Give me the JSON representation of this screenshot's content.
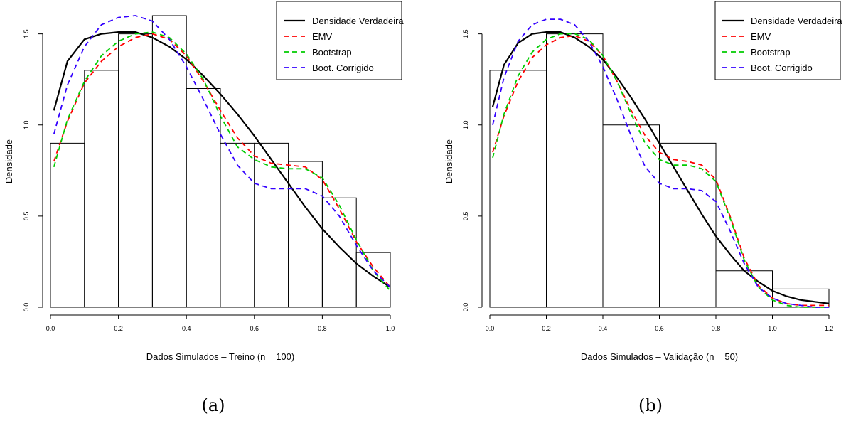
{
  "chart_data": [
    {
      "type": "histogram",
      "caption": "(a)",
      "xlabel": "Dados Simulados – Treino (n = 100)",
      "ylabel": "Densidade",
      "xlim": [
        0,
        1.0
      ],
      "ylim": [
        0,
        1.6
      ],
      "x_ticks": [
        0.0,
        0.2,
        0.4,
        0.6,
        0.8,
        1.0
      ],
      "x_tick_labels": [
        "0.0",
        "0.2",
        "0.4",
        "0.6",
        "0.8",
        "1.0"
      ],
      "y_ticks": [
        0.0,
        0.5,
        1.0,
        1.5
      ],
      "y_tick_labels": [
        "0.0",
        "0.5",
        "1.0",
        "1.5"
      ],
      "legend_position": "top-right",
      "bins": [
        {
          "x0": 0.0,
          "x1": 0.1,
          "density": 0.9
        },
        {
          "x0": 0.1,
          "x1": 0.2,
          "density": 1.3
        },
        {
          "x0": 0.2,
          "x1": 0.3,
          "density": 1.5
        },
        {
          "x0": 0.3,
          "x1": 0.4,
          "density": 1.6
        },
        {
          "x0": 0.4,
          "x1": 0.5,
          "density": 1.2
        },
        {
          "x0": 0.5,
          "x1": 0.6,
          "density": 0.9
        },
        {
          "x0": 0.6,
          "x1": 0.7,
          "density": 0.9
        },
        {
          "x0": 0.7,
          "x1": 0.8,
          "density": 0.8
        },
        {
          "x0": 0.8,
          "x1": 0.9,
          "density": 0.6
        },
        {
          "x0": 0.9,
          "x1": 1.0,
          "density": 0.3
        }
      ],
      "series": [
        {
          "name": "Densidade Verdadeira",
          "color": "#000000",
          "dash": "solid",
          "x": [
            0.01,
            0.05,
            0.1,
            0.15,
            0.2,
            0.25,
            0.3,
            0.35,
            0.4,
            0.45,
            0.5,
            0.55,
            0.6,
            0.65,
            0.7,
            0.75,
            0.8,
            0.85,
            0.9,
            0.95,
            1.0
          ],
          "y": [
            1.08,
            1.35,
            1.47,
            1.5,
            1.51,
            1.51,
            1.48,
            1.43,
            1.36,
            1.27,
            1.17,
            1.06,
            0.94,
            0.81,
            0.68,
            0.55,
            0.43,
            0.33,
            0.24,
            0.17,
            0.11
          ]
        },
        {
          "name": "EMV",
          "color": "#ff0000",
          "dash": "dashed",
          "x": [
            0.01,
            0.05,
            0.1,
            0.15,
            0.2,
            0.25,
            0.3,
            0.35,
            0.4,
            0.45,
            0.5,
            0.55,
            0.6,
            0.65,
            0.7,
            0.75,
            0.8,
            0.85,
            0.9,
            0.95,
            1.0
          ],
          "y": [
            0.8,
            1.02,
            1.23,
            1.35,
            1.43,
            1.48,
            1.5,
            1.47,
            1.38,
            1.24,
            1.08,
            0.93,
            0.83,
            0.79,
            0.78,
            0.77,
            0.7,
            0.54,
            0.36,
            0.22,
            0.11
          ]
        },
        {
          "name": "Bootstrap",
          "color": "#00cc00",
          "dash": "dashed",
          "x": [
            0.01,
            0.05,
            0.1,
            0.15,
            0.2,
            0.25,
            0.3,
            0.35,
            0.4,
            0.45,
            0.5,
            0.55,
            0.6,
            0.65,
            0.7,
            0.75,
            0.8,
            0.85,
            0.9,
            0.95,
            1.0
          ],
          "y": [
            0.77,
            1.03,
            1.24,
            1.38,
            1.46,
            1.5,
            1.51,
            1.48,
            1.39,
            1.25,
            1.05,
            0.88,
            0.81,
            0.77,
            0.76,
            0.76,
            0.71,
            0.56,
            0.37,
            0.2,
            0.09
          ]
        },
        {
          "name": "Boot. Corrigido",
          "color": "#3300ff",
          "dash": "dashed",
          "x": [
            0.01,
            0.05,
            0.1,
            0.15,
            0.2,
            0.25,
            0.3,
            0.35,
            0.4,
            0.45,
            0.5,
            0.55,
            0.6,
            0.65,
            0.7,
            0.75,
            0.8,
            0.85,
            0.9,
            0.95,
            1.0
          ],
          "y": [
            0.95,
            1.22,
            1.43,
            1.55,
            1.59,
            1.6,
            1.57,
            1.47,
            1.32,
            1.14,
            0.95,
            0.78,
            0.68,
            0.65,
            0.65,
            0.65,
            0.61,
            0.5,
            0.34,
            0.2,
            0.11
          ]
        }
      ]
    },
    {
      "type": "histogram",
      "caption": "(b)",
      "xlabel": "Dados Simulados – Validação (n = 50)",
      "ylabel": "Densidade",
      "xlim": [
        0,
        1.2
      ],
      "ylim": [
        0,
        1.6
      ],
      "x_ticks": [
        0.0,
        0.2,
        0.4,
        0.6,
        0.8,
        1.0,
        1.2
      ],
      "x_tick_labels": [
        "0.0",
        "0.2",
        "0.4",
        "0.6",
        "0.8",
        "1.0",
        "1.2"
      ],
      "y_ticks": [
        0.0,
        0.5,
        1.0,
        1.5
      ],
      "y_tick_labels": [
        "0.0",
        "0.5",
        "1.0",
        "1.5"
      ],
      "legend_position": "top-right",
      "bins": [
        {
          "x0": 0.0,
          "x1": 0.2,
          "density": 1.3
        },
        {
          "x0": 0.2,
          "x1": 0.4,
          "density": 1.5
        },
        {
          "x0": 0.4,
          "x1": 0.6,
          "density": 1.0
        },
        {
          "x0": 0.6,
          "x1": 0.8,
          "density": 0.9
        },
        {
          "x0": 0.8,
          "x1": 1.0,
          "density": 0.2
        },
        {
          "x0": 1.0,
          "x1": 1.2,
          "density": 0.1
        }
      ],
      "series": [
        {
          "name": "Densidade Verdadeira",
          "color": "#000000",
          "dash": "solid",
          "x": [
            0.01,
            0.05,
            0.1,
            0.15,
            0.2,
            0.25,
            0.3,
            0.35,
            0.4,
            0.45,
            0.5,
            0.55,
            0.6,
            0.65,
            0.7,
            0.75,
            0.8,
            0.85,
            0.9,
            0.95,
            1.0,
            1.05,
            1.1,
            1.15,
            1.2
          ],
          "y": [
            1.1,
            1.33,
            1.45,
            1.5,
            1.51,
            1.51,
            1.48,
            1.43,
            1.36,
            1.26,
            1.15,
            1.03,
            0.9,
            0.77,
            0.64,
            0.51,
            0.39,
            0.29,
            0.2,
            0.14,
            0.09,
            0.06,
            0.04,
            0.03,
            0.02
          ]
        },
        {
          "name": "EMV",
          "color": "#ff0000",
          "dash": "dashed",
          "x": [
            0.01,
            0.05,
            0.1,
            0.15,
            0.2,
            0.25,
            0.3,
            0.35,
            0.4,
            0.45,
            0.5,
            0.55,
            0.6,
            0.65,
            0.7,
            0.75,
            0.8,
            0.85,
            0.9,
            0.95,
            1.0,
            1.05,
            1.1,
            1.15,
            1.2
          ],
          "y": [
            0.85,
            1.05,
            1.24,
            1.37,
            1.44,
            1.48,
            1.49,
            1.46,
            1.38,
            1.24,
            1.08,
            0.94,
            0.85,
            0.81,
            0.8,
            0.78,
            0.7,
            0.5,
            0.27,
            0.12,
            0.05,
            0.02,
            0.01,
            0.01,
            0.01
          ]
        },
        {
          "name": "Bootstrap",
          "color": "#00cc00",
          "dash": "dashed",
          "x": [
            0.01,
            0.05,
            0.1,
            0.15,
            0.2,
            0.25,
            0.3,
            0.35,
            0.4,
            0.45,
            0.5,
            0.55,
            0.6,
            0.65,
            0.7,
            0.75,
            0.8,
            0.85,
            0.9,
            0.95,
            1.0,
            1.05,
            1.1,
            1.15,
            1.2
          ],
          "y": [
            0.82,
            1.06,
            1.27,
            1.4,
            1.47,
            1.5,
            1.5,
            1.47,
            1.38,
            1.24,
            1.06,
            0.9,
            0.81,
            0.78,
            0.78,
            0.76,
            0.69,
            0.49,
            0.26,
            0.11,
            0.04,
            0.01,
            0.0,
            0.0,
            0.0
          ]
        },
        {
          "name": "Boot. Corrigido",
          "color": "#3300ff",
          "dash": "dashed",
          "x": [
            0.01,
            0.05,
            0.1,
            0.15,
            0.2,
            0.25,
            0.3,
            0.35,
            0.4,
            0.45,
            0.5,
            0.55,
            0.6,
            0.65,
            0.7,
            0.75,
            0.8,
            0.85,
            0.9,
            0.95,
            1.0,
            1.05,
            1.1,
            1.15,
            1.2
          ],
          "y": [
            1.0,
            1.26,
            1.46,
            1.55,
            1.58,
            1.58,
            1.55,
            1.46,
            1.32,
            1.14,
            0.94,
            0.77,
            0.68,
            0.65,
            0.65,
            0.64,
            0.58,
            0.42,
            0.24,
            0.11,
            0.05,
            0.02,
            0.01,
            0.0,
            0.0
          ]
        }
      ]
    }
  ]
}
